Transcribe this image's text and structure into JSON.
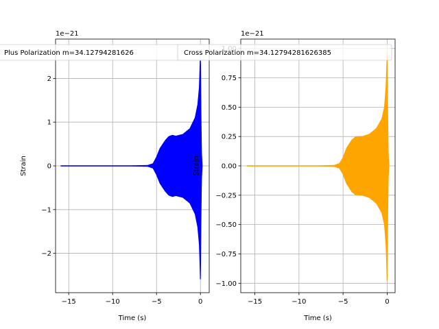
{
  "chart_data": [
    {
      "type": "line",
      "legend": "Plus Polarization m=34.12794281626385",
      "legend_shown": "Plus Polarization m=34.12794281626",
      "xlabel": "Time (s)",
      "ylabel": "Strain",
      "offset_text": "1e−21",
      "xlim": [
        -16.5,
        1.0
      ],
      "ylim": [
        -2.9,
        2.9
      ],
      "xticks": [
        -15,
        -10,
        -5,
        0
      ],
      "xtick_labels": [
        "−15",
        "−10",
        "−5",
        "0"
      ],
      "yticks": [
        -2,
        -1,
        0,
        1,
        2
      ],
      "ytick_labels": [
        "−2",
        "−1",
        "0",
        "1",
        "2"
      ],
      "grid": true,
      "legend_loc": "upper center",
      "color": "#0000ff",
      "series": [
        {
          "name": "Plus Polarization m=34.12794281626385",
          "envelope_x": [
            -15.9,
            -8.0,
            -6.0,
            -5.4,
            -5.0,
            -4.6,
            -4.0,
            -3.6,
            -3.2,
            -2.8,
            -2.0,
            -1.2,
            -0.6,
            -0.3,
            -0.12,
            -0.04,
            0.0,
            0.06,
            0.12,
            0.2
          ],
          "envelope_y": [
            0.0,
            0.0,
            0.01,
            0.05,
            0.2,
            0.4,
            0.58,
            0.67,
            0.7,
            0.68,
            0.72,
            0.85,
            1.1,
            1.4,
            1.8,
            2.3,
            2.65,
            1.2,
            0.3,
            0.0
          ]
        }
      ]
    },
    {
      "type": "line",
      "legend": "Cross Polarization m=34.12794281626385",
      "xlabel": "Time (s)",
      "ylabel": "Strain",
      "offset_text": "1e−21",
      "xlim": [
        -16.6,
        0.9
      ],
      "ylim": [
        -1.08,
        1.08
      ],
      "xticks": [
        -15,
        -10,
        -5,
        0
      ],
      "xtick_labels": [
        "−15",
        "−10",
        "−5",
        "0"
      ],
      "yticks": [
        -1.0,
        -0.75,
        -0.5,
        -0.25,
        0.0,
        0.25,
        0.5,
        0.75,
        1.0
      ],
      "ytick_labels": [
        "−1.00",
        "−0.75",
        "−0.50",
        "−0.25",
        "0.00",
        "0.25",
        "0.50",
        "0.75",
        "1.00"
      ],
      "grid": true,
      "legend_loc": "upper center",
      "color": "#ffa500",
      "series": [
        {
          "name": "Cross Polarization m=34.12794281626385",
          "envelope_x": [
            -15.9,
            -8.0,
            -6.0,
            -5.4,
            -5.0,
            -4.6,
            -4.0,
            -3.6,
            -3.2,
            -2.8,
            -2.0,
            -1.2,
            -0.6,
            -0.3,
            -0.12,
            -0.04,
            0.0,
            0.06,
            0.12,
            0.2
          ],
          "envelope_y": [
            0.0,
            0.0,
            0.004,
            0.02,
            0.07,
            0.15,
            0.22,
            0.245,
            0.25,
            0.25,
            0.27,
            0.32,
            0.4,
            0.5,
            0.68,
            0.86,
            1.0,
            0.45,
            0.1,
            0.0
          ]
        }
      ]
    }
  ]
}
